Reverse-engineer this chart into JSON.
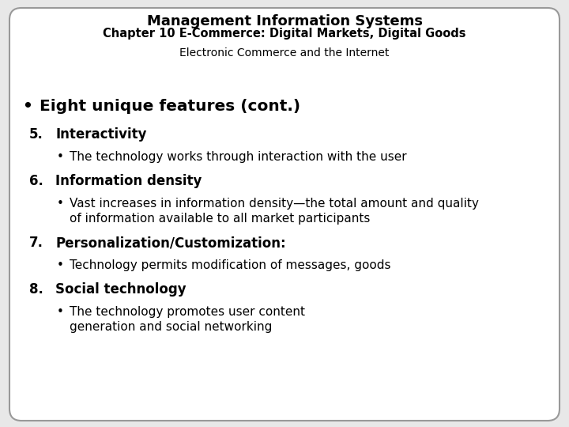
{
  "title_line1": "Management Information Systems",
  "title_line2": "Chapter 10 E-Commerce: Digital Markets, Digital Goods",
  "subtitle": "Electronic Commerce and the Internet",
  "bg_color": "#e8e8e8",
  "slide_bg": "#ffffff",
  "border_color": "#999999",
  "title_color": "#000000",
  "content": [
    {
      "type": "bullet_main",
      "text": "Eight unique features (cont.)"
    },
    {
      "type": "numbered_bold",
      "num": "5.",
      "text": "Interactivity"
    },
    {
      "type": "bullet_sub",
      "text": "The technology works through interaction with the user",
      "wrap": false
    },
    {
      "type": "numbered_bold",
      "num": "6.",
      "text": "Information density"
    },
    {
      "type": "bullet_sub",
      "text": "Vast increases in information density—the total amount and quality of information available to all market participants",
      "wrap": true
    },
    {
      "type": "numbered_bold",
      "num": "7.",
      "text": "Personalization/Customization:"
    },
    {
      "type": "bullet_sub",
      "text": "Technology permits modification of messages, goods",
      "wrap": false
    },
    {
      "type": "numbered_bold",
      "num": "8.",
      "text": "Social technology"
    },
    {
      "type": "bullet_sub",
      "text": "The technology promotes user content generation and social networking",
      "wrap": true
    }
  ],
  "figsize": [
    7.2,
    5.4
  ],
  "dpi": 100
}
